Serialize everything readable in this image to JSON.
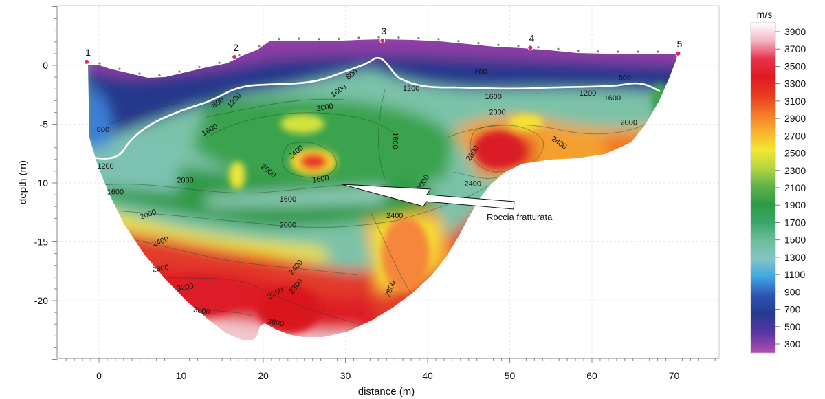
{
  "chart_data": {
    "type": "heatmap",
    "title": "",
    "xlabel": "distance (m)",
    "ylabel": "depth (m)",
    "xlim": [
      -5,
      75
    ],
    "ylim": [
      -25,
      5
    ],
    "x_ticks": [
      0,
      10,
      20,
      30,
      40,
      50,
      60,
      70
    ],
    "y_ticks": [
      0,
      -5,
      -10,
      -15,
      -20
    ],
    "colorbar": {
      "unit": "m/s",
      "ticks": [
        3900,
        3700,
        3500,
        3300,
        3100,
        2900,
        2700,
        2500,
        2300,
        2100,
        1900,
        1700,
        1500,
        1300,
        1100,
        900,
        700,
        500,
        300
      ],
      "colors": [
        "#ffffff",
        "#f3b5c2",
        "#e8324a",
        "#df1a22",
        "#ea3b1f",
        "#f4772a",
        "#f8b12c",
        "#f4e631",
        "#b4d640",
        "#5fb34a",
        "#2e9a44",
        "#3aa66a",
        "#6cbd9d",
        "#85c6c3",
        "#3fa6e4",
        "#2f55b5",
        "#243b8e",
        "#5a35a4",
        "#b34fb0"
      ]
    },
    "geophones": [
      {
        "label": "1",
        "x": -1.5,
        "y": 0.3
      },
      {
        "label": "2",
        "x": 16.5,
        "y": 0.7
      },
      {
        "label": "3",
        "x": 34.5,
        "y": 2.1
      },
      {
        "label": "4",
        "x": 52.5,
        "y": 1.5
      },
      {
        "label": "5",
        "x": 70.5,
        "y": 1.0
      }
    ],
    "contour_labels": [
      {
        "text": "800",
        "x": 0.5,
        "y": -5.5,
        "rot": 0
      },
      {
        "text": "800",
        "x": 14.5,
        "y": -3.2,
        "rot": -30
      },
      {
        "text": "1200",
        "x": 16.5,
        "y": -3.0,
        "rot": -50
      },
      {
        "text": "800",
        "x": 30.8,
        "y": -0.8,
        "rot": -35
      },
      {
        "text": "1600",
        "x": 29.2,
        "y": -2.2,
        "rot": -35
      },
      {
        "text": "800",
        "x": 46.5,
        "y": -0.6,
        "rot": 0
      },
      {
        "text": "1200",
        "x": 38.0,
        "y": -2.0,
        "rot": 0
      },
      {
        "text": "800",
        "x": 64.0,
        "y": -1.1,
        "rot": 0
      },
      {
        "text": "1200",
        "x": 59.5,
        "y": -2.4,
        "rot": 0
      },
      {
        "text": "1600",
        "x": 48.0,
        "y": -2.7,
        "rot": 0
      },
      {
        "text": "1600",
        "x": 62.5,
        "y": -2.8,
        "rot": 0
      },
      {
        "text": "2000",
        "x": 27.5,
        "y": -3.6,
        "rot": -10
      },
      {
        "text": "2000",
        "x": 48.5,
        "y": -4.0,
        "rot": 0
      },
      {
        "text": "1600",
        "x": 13.5,
        "y": -5.5,
        "rot": -30
      },
      {
        "text": "2000",
        "x": 64.5,
        "y": -4.9,
        "rot": 0
      },
      {
        "text": "1600",
        "x": 36.0,
        "y": -6.4,
        "rot": 90
      },
      {
        "text": "2400",
        "x": 24.0,
        "y": -7.4,
        "rot": -40
      },
      {
        "text": "2800",
        "x": 45.5,
        "y": -7.5,
        "rot": -55
      },
      {
        "text": "2400",
        "x": 56.0,
        "y": -6.6,
        "rot": 35
      },
      {
        "text": "1200",
        "x": 0.8,
        "y": -8.6,
        "rot": 0
      },
      {
        "text": "2000",
        "x": 20.6,
        "y": -9.0,
        "rot": 40
      },
      {
        "text": "1600",
        "x": 27.0,
        "y": -9.7,
        "rot": -10
      },
      {
        "text": "2000",
        "x": 39.5,
        "y": -10.0,
        "rot": -60
      },
      {
        "text": "2400",
        "x": 45.5,
        "y": -10.1,
        "rot": 0
      },
      {
        "text": "2000",
        "x": 10.5,
        "y": -9.8,
        "rot": 0
      },
      {
        "text": "1600",
        "x": 2.0,
        "y": -10.8,
        "rot": 0
      },
      {
        "text": "1600",
        "x": 23.0,
        "y": -11.4,
        "rot": 0
      },
      {
        "text": "2000",
        "x": 6.0,
        "y": -12.7,
        "rot": -20
      },
      {
        "text": "2000",
        "x": 23.0,
        "y": -13.6,
        "rot": 0
      },
      {
        "text": "2400",
        "x": 36.0,
        "y": -12.8,
        "rot": 0
      },
      {
        "text": "2400",
        "x": 7.5,
        "y": -15.0,
        "rot": -20
      },
      {
        "text": "2800",
        "x": 7.5,
        "y": -17.3,
        "rot": -10
      },
      {
        "text": "2400",
        "x": 24.0,
        "y": -17.2,
        "rot": -50
      },
      {
        "text": "2800",
        "x": 24.0,
        "y": -18.8,
        "rot": -50
      },
      {
        "text": "2800",
        "x": 35.5,
        "y": -19.0,
        "rot": -70
      },
      {
        "text": "3200",
        "x": 10.5,
        "y": -18.9,
        "rot": -10
      },
      {
        "text": "3200",
        "x": 21.5,
        "y": -19.4,
        "rot": -30
      },
      {
        "text": "3600",
        "x": 12.5,
        "y": -20.9,
        "rot": 10
      },
      {
        "text": "3600",
        "x": 21.5,
        "y": -21.9,
        "rot": 10
      }
    ],
    "annotation": {
      "text": "Roccia fratturata"
    }
  }
}
